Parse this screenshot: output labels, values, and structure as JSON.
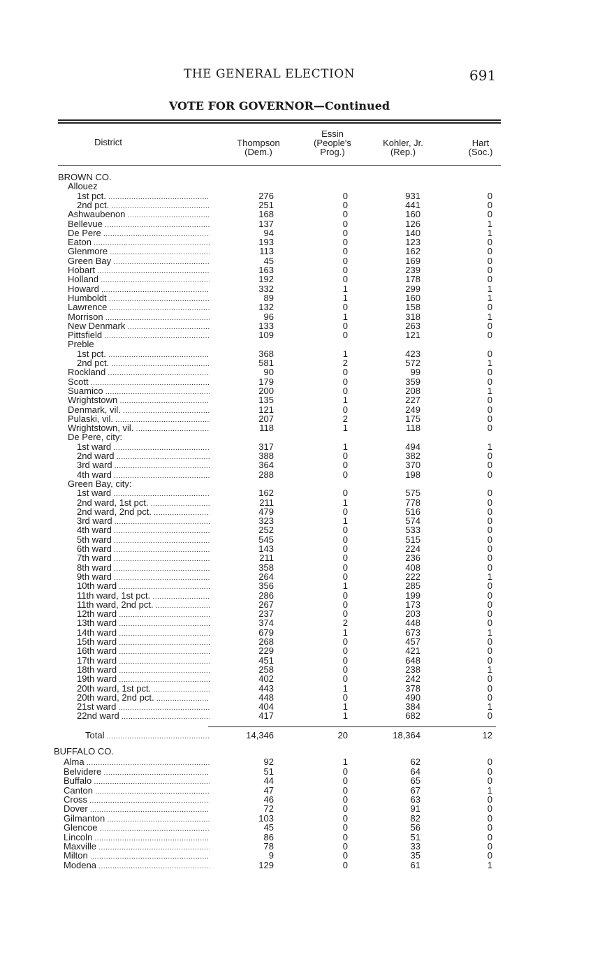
{
  "running_head": "THE GENERAL ELECTION",
  "page_number": "691",
  "subtitle": "VOTE FOR GOVERNOR—Continued",
  "columns": {
    "district": "District",
    "thompson": [
      "Thompson",
      "(Dem.)"
    ],
    "essin": [
      "Essin",
      "(People's",
      "Prog.)"
    ],
    "kohler": [
      "Kohler, Jr.",
      "(Rep.)"
    ],
    "hart": [
      "Hart",
      "(Soc.)"
    ]
  },
  "brown": {
    "rows": [
      {
        "name": "BROWN CO.",
        "level": 0,
        "heading": true
      },
      {
        "name": "Allouez",
        "level": 1,
        "heading": true
      },
      {
        "name": "1st pct.",
        "level": 2,
        "t": "276",
        "e": "0",
        "k": "931",
        "h": "0"
      },
      {
        "name": "2nd pct.",
        "level": 2,
        "t": "251",
        "e": "0",
        "k": "441",
        "h": "0"
      },
      {
        "name": "Ashwaubenon",
        "level": 1,
        "t": "168",
        "e": "0",
        "k": "160",
        "h": "0"
      },
      {
        "name": "Bellevue",
        "level": 1,
        "t": "137",
        "e": "0",
        "k": "126",
        "h": "1"
      },
      {
        "name": "De Pere",
        "level": 1,
        "t": "94",
        "e": "0",
        "k": "140",
        "h": "1"
      },
      {
        "name": "Eaton",
        "level": 1,
        "t": "193",
        "e": "0",
        "k": "123",
        "h": "0"
      },
      {
        "name": "Glenmore",
        "level": 1,
        "t": "113",
        "e": "0",
        "k": "162",
        "h": "0"
      },
      {
        "name": "Green Bay",
        "level": 1,
        "t": "45",
        "e": "0",
        "k": "169",
        "h": "0"
      },
      {
        "name": "Hobart",
        "level": 1,
        "t": "163",
        "e": "0",
        "k": "239",
        "h": "0"
      },
      {
        "name": "Holland",
        "level": 1,
        "t": "192",
        "e": "0",
        "k": "178",
        "h": "0"
      },
      {
        "name": "Howard",
        "level": 1,
        "t": "332",
        "e": "1",
        "k": "299",
        "h": "1"
      },
      {
        "name": "Humboldt",
        "level": 1,
        "t": "89",
        "e": "1",
        "k": "160",
        "h": "1"
      },
      {
        "name": "Lawrence",
        "level": 1,
        "t": "132",
        "e": "0",
        "k": "158",
        "h": "0"
      },
      {
        "name": "Morrison",
        "level": 1,
        "t": "96",
        "e": "1",
        "k": "318",
        "h": "1"
      },
      {
        "name": "New Denmark",
        "level": 1,
        "t": "133",
        "e": "0",
        "k": "263",
        "h": "0"
      },
      {
        "name": "Pittsfield",
        "level": 1,
        "t": "109",
        "e": "0",
        "k": "121",
        "h": "0"
      },
      {
        "name": "Preble",
        "level": 1,
        "heading": true
      },
      {
        "name": "1st pct.",
        "level": 2,
        "t": "368",
        "e": "1",
        "k": "423",
        "h": "0"
      },
      {
        "name": "2nd pct.",
        "level": 2,
        "t": "581",
        "e": "2",
        "k": "572",
        "h": "1"
      },
      {
        "name": "Rockland",
        "level": 1,
        "t": "90",
        "e": "0",
        "k": "99",
        "h": "0"
      },
      {
        "name": "Scott",
        "level": 1,
        "t": "179",
        "e": "0",
        "k": "359",
        "h": "0"
      },
      {
        "name": "Suamico",
        "level": 1,
        "t": "200",
        "e": "0",
        "k": "208",
        "h": "1"
      },
      {
        "name": "Wrightstown",
        "level": 1,
        "t": "135",
        "e": "1",
        "k": "227",
        "h": "0"
      },
      {
        "name": "Denmark, vil.",
        "level": 1,
        "t": "121",
        "e": "0",
        "k": "249",
        "h": "0"
      },
      {
        "name": "Pulaski, vil.",
        "level": 1,
        "t": "207",
        "e": "2",
        "k": "175",
        "h": "0"
      },
      {
        "name": "Wrightstown, vil.",
        "level": 1,
        "t": "118",
        "e": "1",
        "k": "118",
        "h": "0"
      },
      {
        "name": "De Pere, city:",
        "level": 1,
        "heading": true
      },
      {
        "name": "1st ward",
        "level": 2,
        "t": "317",
        "e": "1",
        "k": "494",
        "h": "1"
      },
      {
        "name": "2nd ward",
        "level": 2,
        "t": "388",
        "e": "0",
        "k": "382",
        "h": "0"
      },
      {
        "name": "3rd ward",
        "level": 2,
        "t": "364",
        "e": "0",
        "k": "370",
        "h": "0"
      },
      {
        "name": "4th ward",
        "level": 2,
        "t": "288",
        "e": "0",
        "k": "198",
        "h": "0"
      },
      {
        "name": "Green Bay, city:",
        "level": 1,
        "heading": true
      },
      {
        "name": "1st ward",
        "level": 2,
        "t": "162",
        "e": "0",
        "k": "575",
        "h": "0"
      },
      {
        "name": "2nd ward, 1st pct.",
        "level": 2,
        "t": "211",
        "e": "1",
        "k": "778",
        "h": "0"
      },
      {
        "name": "2nd ward, 2nd pct.",
        "level": 2,
        "t": "479",
        "e": "0",
        "k": "516",
        "h": "0"
      },
      {
        "name": "3rd ward",
        "level": 2,
        "t": "323",
        "e": "1",
        "k": "574",
        "h": "0"
      },
      {
        "name": "4th ward",
        "level": 2,
        "t": "252",
        "e": "0",
        "k": "533",
        "h": "0"
      },
      {
        "name": "5th ward",
        "level": 2,
        "t": "545",
        "e": "0",
        "k": "515",
        "h": "0"
      },
      {
        "name": "6th ward",
        "level": 2,
        "t": "143",
        "e": "0",
        "k": "224",
        "h": "0"
      },
      {
        "name": "7th ward",
        "level": 2,
        "t": "211",
        "e": "0",
        "k": "236",
        "h": "0"
      },
      {
        "name": "8th ward",
        "level": 2,
        "t": "358",
        "e": "0",
        "k": "408",
        "h": "0"
      },
      {
        "name": "9th ward",
        "level": 2,
        "t": "264",
        "e": "0",
        "k": "222",
        "h": "1"
      },
      {
        "name": "10th ward",
        "level": 2,
        "t": "356",
        "e": "1",
        "k": "285",
        "h": "0"
      },
      {
        "name": "11th ward, 1st pct.",
        "level": 2,
        "t": "286",
        "e": "0",
        "k": "199",
        "h": "0"
      },
      {
        "name": "11th ward, 2nd pct.",
        "level": 2,
        "t": "267",
        "e": "0",
        "k": "173",
        "h": "0"
      },
      {
        "name": "12th ward",
        "level": 2,
        "t": "237",
        "e": "0",
        "k": "203",
        "h": "0"
      },
      {
        "name": "13th ward",
        "level": 2,
        "t": "374",
        "e": "2",
        "k": "448",
        "h": "0"
      },
      {
        "name": "14th ward",
        "level": 2,
        "t": "679",
        "e": "1",
        "k": "673",
        "h": "1"
      },
      {
        "name": "15th ward",
        "level": 2,
        "t": "268",
        "e": "0",
        "k": "457",
        "h": "0"
      },
      {
        "name": "16th ward",
        "level": 2,
        "t": "229",
        "e": "0",
        "k": "421",
        "h": "0"
      },
      {
        "name": "17th ward",
        "level": 2,
        "t": "451",
        "e": "0",
        "k": "648",
        "h": "0"
      },
      {
        "name": "18th ward",
        "level": 2,
        "t": "258",
        "e": "0",
        "k": "238",
        "h": "1"
      },
      {
        "name": "19th ward",
        "level": 2,
        "t": "402",
        "e": "0",
        "k": "242",
        "h": "0"
      },
      {
        "name": "20th ward, 1st pct.",
        "level": 2,
        "t": "443",
        "e": "1",
        "k": "378",
        "h": "0"
      },
      {
        "name": "20th ward, 2nd pct.",
        "level": 2,
        "t": "448",
        "e": "0",
        "k": "490",
        "h": "0"
      },
      {
        "name": "21st ward",
        "level": 2,
        "t": "404",
        "e": "1",
        "k": "384",
        "h": "1"
      },
      {
        "name": "22nd ward",
        "level": 2,
        "t": "417",
        "e": "1",
        "k": "682",
        "h": "0"
      }
    ],
    "total": {
      "name": "Total",
      "t": "14,346",
      "e": "20",
      "k": "18,364",
      "h": "12"
    }
  },
  "buffalo": {
    "rows": [
      {
        "name": "BUFFALO CO.",
        "level": 0,
        "heading": true
      },
      {
        "name": "Alma",
        "level": 1,
        "t": "92",
        "e": "1",
        "k": "62",
        "h": "0"
      },
      {
        "name": "Belvidere",
        "level": 1,
        "t": "51",
        "e": "0",
        "k": "64",
        "h": "0"
      },
      {
        "name": "Buffalo",
        "level": 1,
        "t": "44",
        "e": "0",
        "k": "65",
        "h": "0"
      },
      {
        "name": "Canton",
        "level": 1,
        "t": "47",
        "e": "0",
        "k": "67",
        "h": "1"
      },
      {
        "name": "Cross",
        "level": 1,
        "t": "46",
        "e": "0",
        "k": "63",
        "h": "0"
      },
      {
        "name": "Dover",
        "level": 1,
        "t": "72",
        "e": "0",
        "k": "91",
        "h": "0"
      },
      {
        "name": "Gilmanton",
        "level": 1,
        "t": "103",
        "e": "0",
        "k": "82",
        "h": "0"
      },
      {
        "name": "Glencoe",
        "level": 1,
        "t": "45",
        "e": "0",
        "k": "56",
        "h": "0"
      },
      {
        "name": "Lincoln",
        "level": 1,
        "t": "86",
        "e": "0",
        "k": "51",
        "h": "0"
      },
      {
        "name": "Maxville",
        "level": 1,
        "t": "78",
        "e": "0",
        "k": "33",
        "h": "0"
      },
      {
        "name": "Milton",
        "level": 1,
        "t": "9",
        "e": "0",
        "k": "35",
        "h": "0"
      },
      {
        "name": "Modena",
        "level": 1,
        "t": "129",
        "e": "0",
        "k": "61",
        "h": "1"
      }
    ]
  }
}
